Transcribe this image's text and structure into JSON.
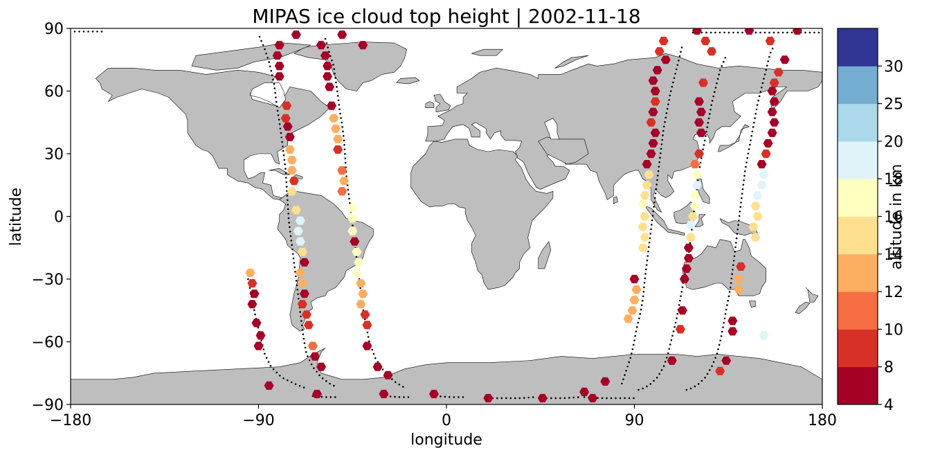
{
  "title": "MIPAS ice cloud top height | 2002-11-18",
  "xlabel": "longitude",
  "ylabel": "latitude",
  "colorbar_label": "altitude in km",
  "x_ticks": [
    "−180",
    "−90",
    "0",
    "90",
    "180"
  ],
  "y_ticks": [
    "90",
    "60",
    "30",
    "0",
    "−30",
    "−60",
    "−90"
  ],
  "colorbar_ticks": [
    "4",
    "8",
    "10",
    "12",
    "14",
    "16",
    "18",
    "20",
    "25",
    "30"
  ],
  "land_color": "#bebebe",
  "chart_data": {
    "type": "scatter",
    "xlim": [
      -180,
      180
    ],
    "ylim": [
      -90,
      90
    ],
    "colorbar": {
      "bounds": [
        4,
        8,
        10,
        12,
        14,
        16,
        18,
        20,
        25,
        30
      ],
      "colors": [
        "#a50026",
        "#d73027",
        "#f46d43",
        "#fdae61",
        "#fee090",
        "#ffffbf",
        "#e0f3f8",
        "#abd9e9",
        "#74add1",
        "#313695"
      ]
    },
    "tracks": [
      [
        [
          -178,
          88.5
        ],
        [
          -171,
          88.5
        ],
        [
          -164,
          88.5
        ]
      ],
      [
        [
          -89.5,
          86
        ],
        [
          -87,
          80
        ],
        [
          -85,
          74
        ],
        [
          -84,
          70
        ],
        [
          -82.5,
          63
        ],
        [
          -81.5,
          55
        ],
        [
          -80,
          45
        ],
        [
          -79,
          38
        ],
        [
          -78,
          30
        ],
        [
          -77,
          22
        ],
        [
          -76.5,
          14
        ],
        [
          -76,
          6
        ],
        [
          -75.5,
          -2
        ],
        [
          -74.5,
          -10
        ],
        [
          -73.5,
          -18
        ],
        [
          -72.5,
          -26
        ],
        [
          -71.5,
          -34
        ],
        [
          -70.5,
          -42
        ],
        [
          -69.5,
          -50
        ],
        [
          -68.5,
          -58
        ],
        [
          -67,
          -66
        ],
        [
          -64,
          -72
        ],
        [
          -60,
          -77
        ],
        [
          -56,
          -80
        ],
        [
          -52,
          -82
        ]
      ],
      [
        [
          -95,
          -30
        ],
        [
          -93,
          -40
        ],
        [
          -91,
          -50
        ],
        [
          -89,
          -58
        ],
        [
          -87,
          -66
        ],
        [
          -84,
          -72
        ],
        [
          -79,
          -77
        ],
        [
          -73,
          -80
        ],
        [
          -68,
          -82
        ]
      ],
      [
        [
          -58,
          85
        ],
        [
          -56,
          78
        ],
        [
          -54,
          72
        ],
        [
          -53,
          65
        ],
        [
          -52,
          58
        ],
        [
          -51,
          50
        ],
        [
          -50,
          44
        ],
        [
          -49,
          36
        ],
        [
          -48.5,
          28
        ],
        [
          -48,
          20
        ],
        [
          -47,
          12
        ],
        [
          -46,
          4
        ],
        [
          -45,
          -4
        ],
        [
          -44,
          -12
        ],
        [
          -43,
          -20
        ],
        [
          -42,
          -28
        ],
        [
          -41,
          -36
        ],
        [
          -40,
          -44
        ],
        [
          -38.5,
          -52
        ],
        [
          -37,
          -60
        ],
        [
          -34,
          -68
        ],
        [
          -30,
          -74
        ],
        [
          -25,
          -79
        ],
        [
          -20,
          -82
        ]
      ],
      [
        [
          -64,
          -86
        ],
        [
          -58,
          -86.5
        ],
        [
          -52,
          -86.5
        ]
      ],
      [
        [
          -29,
          -86
        ],
        [
          -23,
          -86.5
        ],
        [
          -17,
          -86.5
        ]
      ],
      [
        [
          -5,
          -86
        ],
        [
          2,
          -86.5
        ],
        [
          8,
          -86.5
        ]
      ],
      [
        [
          20,
          -87
        ],
        [
          28,
          -87
        ],
        [
          36,
          -87
        ],
        [
          42,
          -86.5
        ]
      ],
      [
        [
          48,
          -87
        ],
        [
          56,
          -87
        ],
        [
          64,
          -86.5
        ]
      ],
      [
        [
          66,
          -86.5
        ],
        [
          74,
          -87
        ],
        [
          82,
          -87
        ],
        [
          90,
          -87
        ]
      ],
      [
        [
          84,
          -80
        ],
        [
          86,
          -74
        ],
        [
          88,
          -68
        ],
        [
          89.5,
          -62
        ],
        [
          91,
          -54
        ],
        [
          92.5,
          -48
        ],
        [
          94,
          -40
        ],
        [
          95,
          -30
        ],
        [
          96,
          -22
        ],
        [
          97,
          -14
        ],
        [
          98,
          -6
        ],
        [
          99,
          2
        ],
        [
          100,
          10
        ],
        [
          101,
          18
        ],
        [
          102,
          26
        ],
        [
          103,
          34
        ],
        [
          104,
          42
        ],
        [
          105.5,
          50
        ],
        [
          107,
          58
        ],
        [
          109,
          66
        ],
        [
          111,
          74
        ],
        [
          113,
          82
        ]
      ],
      [
        [
          92,
          -83
        ],
        [
          95,
          -82
        ],
        [
          98,
          -80
        ],
        [
          101,
          -77
        ],
        [
          104,
          -72
        ],
        [
          106,
          -66
        ],
        [
          108,
          -58
        ],
        [
          110,
          -50
        ],
        [
          111.5,
          -42
        ],
        [
          113,
          -34
        ],
        [
          114.5,
          -26
        ],
        [
          116,
          -18
        ],
        [
          117,
          -10
        ],
        [
          118,
          -2
        ],
        [
          119,
          6
        ],
        [
          120,
          14
        ],
        [
          121,
          22
        ],
        [
          122.5,
          30
        ],
        [
          124,
          38
        ],
        [
          125.5,
          46
        ],
        [
          127,
          54
        ],
        [
          129,
          62
        ],
        [
          131,
          70
        ],
        [
          134,
          77
        ]
      ],
      [
        [
          115,
          -83
        ],
        [
          118,
          -82
        ],
        [
          121,
          -80
        ],
        [
          124,
          -77
        ],
        [
          127,
          -72
        ],
        [
          129.5,
          -66
        ],
        [
          131.5,
          -58
        ],
        [
          133,
          -50
        ],
        [
          134.5,
          -42
        ],
        [
          136,
          -34
        ],
        [
          137,
          -26
        ],
        [
          138,
          -18
        ],
        [
          139,
          -10
        ],
        [
          140,
          -2
        ],
        [
          141,
          6
        ],
        [
          142,
          14
        ],
        [
          143,
          22
        ],
        [
          144.5,
          30
        ],
        [
          146,
          38
        ],
        [
          147.5,
          46
        ],
        [
          149,
          54
        ],
        [
          151,
          62
        ],
        [
          153,
          70
        ],
        [
          155,
          78
        ],
        [
          157,
          82
        ]
      ],
      [
        [
          118,
          88
        ],
        [
          126,
          88
        ],
        [
          134,
          88
        ],
        [
          142,
          88
        ],
        [
          150,
          88
        ],
        [
          158,
          88
        ],
        [
          166,
          88
        ],
        [
          174,
          88
        ],
        [
          179,
          88
        ]
      ]
    ],
    "points": [
      [
        -72,
        87,
        6
      ],
      [
        -50,
        87,
        6
      ],
      [
        -40,
        82,
        6
      ],
      [
        -60,
        82,
        6
      ],
      [
        -80,
        82,
        6
      ],
      [
        -81,
        77,
        6
      ],
      [
        -80,
        72,
        6
      ],
      [
        -80,
        67,
        6
      ],
      [
        -58,
        77,
        6
      ],
      [
        -57,
        72,
        6
      ],
      [
        -57,
        67,
        6
      ],
      [
        -56,
        62,
        6
      ],
      [
        -55,
        53,
        6
      ],
      [
        -76.5,
        53,
        9
      ],
      [
        -77,
        47,
        9
      ],
      [
        -76,
        43,
        6
      ],
      [
        -75,
        38,
        6
      ],
      [
        -75,
        32,
        13
      ],
      [
        -74,
        27,
        13
      ],
      [
        -74,
        22,
        13
      ],
      [
        -73,
        17,
        9
      ],
      [
        -74,
        12,
        15
      ],
      [
        -72,
        3,
        15
      ],
      [
        -70,
        -2,
        19
      ],
      [
        -71,
        -7,
        19
      ],
      [
        -70,
        -12,
        19
      ],
      [
        -69,
        -17,
        15
      ],
      [
        -68,
        -22,
        6
      ],
      [
        -70,
        -27,
        13
      ],
      [
        -69,
        -32,
        13
      ],
      [
        -68,
        -37,
        6
      ],
      [
        -69,
        -42,
        9
      ],
      [
        -67,
        -47,
        9
      ],
      [
        -66,
        -52,
        9
      ],
      [
        -64,
        -62,
        11
      ],
      [
        -63,
        -67,
        6
      ],
      [
        -60,
        -72,
        6
      ],
      [
        -54,
        47,
        13
      ],
      [
        -53,
        42,
        13
      ],
      [
        -52,
        37,
        13
      ],
      [
        -52,
        32,
        9
      ],
      [
        -50,
        22,
        11
      ],
      [
        -49,
        17,
        13
      ],
      [
        -50,
        12,
        11
      ],
      [
        -45,
        4,
        17
      ],
      [
        -45,
        -1,
        17
      ],
      [
        -45,
        -7,
        17
      ],
      [
        -44,
        -12,
        6
      ],
      [
        -43,
        -17,
        17
      ],
      [
        -42,
        -22,
        17
      ],
      [
        -43,
        -27,
        17
      ],
      [
        -41,
        -32,
        13
      ],
      [
        -40,
        -37,
        13
      ],
      [
        -41,
        -42,
        13
      ],
      [
        -39,
        -47,
        9
      ],
      [
        -38,
        -52,
        9
      ],
      [
        -38,
        -62,
        6
      ],
      [
        -33,
        -72,
        6
      ],
      [
        -28,
        -76,
        6
      ],
      [
        -94,
        -27,
        13
      ],
      [
        -93,
        -32,
        9
      ],
      [
        -92,
        -37,
        6
      ],
      [
        -93,
        -42,
        6
      ],
      [
        -91,
        -51,
        6
      ],
      [
        -89,
        -57,
        6
      ],
      [
        -90,
        -62,
        6
      ],
      [
        -85,
        -81,
        6
      ],
      [
        -62,
        -85,
        6
      ],
      [
        -30,
        -85,
        6
      ],
      [
        -6,
        -85,
        6
      ],
      [
        20,
        -87,
        6
      ],
      [
        46,
        -87,
        6
      ],
      [
        66,
        -84,
        6
      ],
      [
        70,
        -87,
        6
      ],
      [
        76,
        -79,
        6
      ],
      [
        104,
        84,
        9
      ],
      [
        102,
        79,
        9
      ],
      [
        105,
        75,
        6
      ],
      [
        101,
        70,
        6
      ],
      [
        99,
        65,
        6
      ],
      [
        100,
        60,
        6
      ],
      [
        100,
        55,
        9
      ],
      [
        99,
        50,
        6
      ],
      [
        98,
        45,
        9
      ],
      [
        100,
        40,
        6
      ],
      [
        99,
        35,
        6
      ],
      [
        98,
        30,
        6
      ],
      [
        96,
        25,
        6
      ],
      [
        97,
        20,
        15
      ],
      [
        96,
        15,
        15
      ],
      [
        95,
        10,
        15
      ],
      [
        94,
        6,
        17
      ],
      [
        95,
        0,
        15
      ],
      [
        94,
        -5,
        15
      ],
      [
        95,
        -10,
        15
      ],
      [
        94,
        -15,
        15
      ],
      [
        90,
        -30,
        6
      ],
      [
        91,
        -35,
        13
      ],
      [
        90,
        -40,
        13
      ],
      [
        89,
        -45,
        13
      ],
      [
        87,
        -49,
        13
      ],
      [
        120,
        89,
        6
      ],
      [
        124,
        84,
        9
      ],
      [
        127,
        79,
        9
      ],
      [
        123,
        64,
        9
      ],
      [
        121,
        55,
        6
      ],
      [
        122,
        50,
        6
      ],
      [
        121,
        45,
        6
      ],
      [
        122,
        40,
        6
      ],
      [
        121,
        30,
        9
      ],
      [
        119,
        25,
        11
      ],
      [
        120,
        20,
        17
      ],
      [
        120,
        15,
        19
      ],
      [
        119,
        10,
        17
      ],
      [
        119,
        5,
        17
      ],
      [
        118,
        0,
        15
      ],
      [
        117,
        -4,
        19
      ],
      [
        117,
        -10,
        15
      ],
      [
        116,
        -15,
        6
      ],
      [
        116,
        -20,
        6
      ],
      [
        115,
        -25,
        6
      ],
      [
        114,
        -30,
        6
      ],
      [
        113,
        -45,
        6
      ],
      [
        112,
        -54,
        9
      ],
      [
        108,
        -69,
        6
      ],
      [
        145,
        89,
        6
      ],
      [
        155,
        84,
        9
      ],
      [
        168,
        89,
        6
      ],
      [
        162,
        75,
        6
      ],
      [
        159,
        69,
        9
      ],
      [
        157,
        64,
        9
      ],
      [
        156,
        60,
        6
      ],
      [
        157,
        55,
        6
      ],
      [
        156,
        50,
        6
      ],
      [
        157,
        45,
        6
      ],
      [
        156,
        40,
        6
      ],
      [
        154,
        35,
        6
      ],
      [
        153,
        30,
        9
      ],
      [
        151,
        25,
        6
      ],
      [
        152,
        20,
        19
      ],
      [
        151,
        15,
        19
      ],
      [
        149,
        10,
        19
      ],
      [
        148,
        5,
        15
      ],
      [
        149,
        0,
        15
      ],
      [
        147,
        -5,
        15
      ],
      [
        148,
        -10,
        15
      ],
      [
        141,
        -24,
        9
      ],
      [
        140,
        -30,
        13
      ],
      [
        140,
        -35,
        13
      ],
      [
        137,
        -50,
        6
      ],
      [
        137,
        -55,
        6
      ],
      [
        134,
        -69,
        6
      ],
      [
        131,
        -74,
        9
      ],
      [
        152,
        -57,
        19
      ]
    ]
  }
}
